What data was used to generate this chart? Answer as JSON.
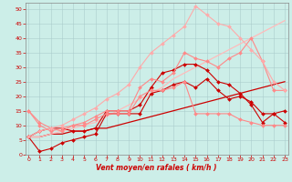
{
  "xlabel": "Vent moyen/en rafales ( km/h )",
  "background_color": "#cceee8",
  "grid_color": "#aacccc",
  "x": [
    0,
    1,
    2,
    3,
    4,
    5,
    6,
    7,
    8,
    9,
    10,
    11,
    12,
    13,
    14,
    15,
    16,
    17,
    18,
    19,
    20,
    21,
    22,
    23
  ],
  "series": [
    {
      "y": [
        6,
        8,
        9,
        9,
        8,
        8,
        9,
        15,
        15,
        15,
        17,
        23,
        28,
        29,
        31,
        31,
        29,
        25,
        24,
        21,
        17,
        11,
        14,
        15
      ],
      "color": "#cc0000",
      "marker": "D",
      "ms": 2.0,
      "lw": 0.8
    },
    {
      "y": [
        6,
        1,
        2,
        4,
        5,
        6,
        7,
        14,
        14,
        14,
        14,
        21,
        22,
        24,
        25,
        23,
        26,
        22,
        19,
        20,
        18,
        14,
        14,
        11
      ],
      "color": "#cc0000",
      "marker": "D",
      "ms": 2.0,
      "lw": 0.8
    },
    {
      "y": [
        15,
        11,
        9,
        8,
        10,
        10,
        12,
        14,
        14,
        14,
        20,
        22,
        22,
        23,
        25,
        14,
        14,
        14,
        14,
        12,
        11,
        10,
        10,
        10
      ],
      "color": "#ff8888",
      "marker": "D",
      "ms": 2.0,
      "lw": 0.8
    },
    {
      "y": [
        15,
        10,
        8,
        9,
        10,
        11,
        13,
        15,
        15,
        15,
        23,
        26,
        25,
        28,
        35,
        33,
        32,
        30,
        33,
        35,
        40,
        32,
        22,
        22
      ],
      "color": "#ff8888",
      "marker": "D",
      "ms": 2.0,
      "lw": 0.8
    },
    {
      "y": [
        6,
        8,
        9,
        10,
        12,
        14,
        16,
        19,
        21,
        24,
        30,
        35,
        38,
        41,
        44,
        51,
        48,
        45,
        44,
        40,
        36,
        32,
        25,
        22
      ],
      "color": "#ffaaaa",
      "marker": "D",
      "ms": 2.0,
      "lw": 0.8
    },
    {
      "y": [
        6,
        6,
        7,
        7,
        8,
        8,
        9,
        9,
        10,
        11,
        12,
        13,
        14,
        15,
        16,
        17,
        18,
        19,
        20,
        21,
        22,
        23,
        24,
        25
      ],
      "color": "#cc0000",
      "marker": null,
      "ms": 0,
      "lw": 0.9
    },
    {
      "y": [
        6,
        6,
        7,
        8,
        9,
        10,
        11,
        13,
        15,
        17,
        19,
        21,
        23,
        26,
        28,
        30,
        32,
        34,
        36,
        38,
        40,
        42,
        44,
        46
      ],
      "color": "#ffbbbb",
      "marker": null,
      "ms": 0,
      "lw": 0.9
    }
  ],
  "ylim_min": 0,
  "ylim_max": 52,
  "xlim_min": 0,
  "xlim_max": 23,
  "yticks": [
    0,
    5,
    10,
    15,
    20,
    25,
    30,
    35,
    40,
    45,
    50
  ],
  "xticks": [
    0,
    1,
    2,
    3,
    4,
    5,
    6,
    7,
    8,
    9,
    10,
    11,
    12,
    13,
    14,
    15,
    16,
    17,
    18,
    19,
    20,
    21,
    22,
    23
  ],
  "tick_fontsize": 4.5,
  "xlabel_fontsize": 5.5
}
